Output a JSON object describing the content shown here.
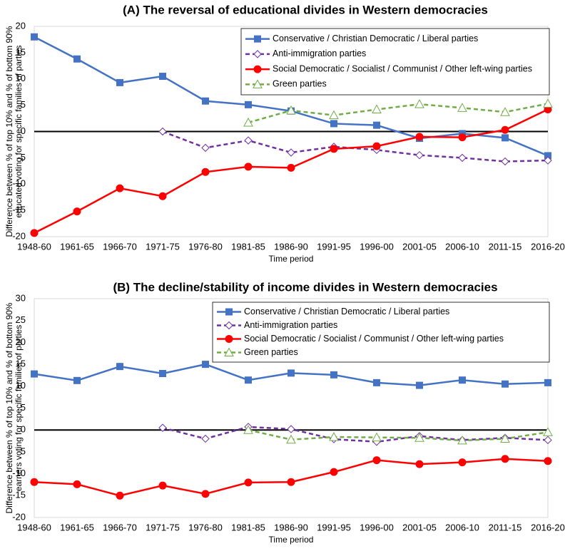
{
  "chart_data": [
    {
      "type": "line",
      "title": "(A)  The reversal of educational divides in Western democracies",
      "x_label": "Time period",
      "y_label": [
        "Difference between % of top 10% and % of bottom 90%",
        "educated voting for specific families of parties"
      ],
      "categories": [
        "1948-60",
        "1961-65",
        "1966-70",
        "1971-75",
        "1976-80",
        "1981-85",
        "1986-90",
        "1991-95",
        "1996-00",
        "2001-05",
        "2006-10",
        "2011-15",
        "2016-20"
      ],
      "ylim": [
        -20,
        20
      ],
      "yticks": [
        -20,
        -15,
        -10,
        -5,
        0,
        5,
        10,
        15,
        20
      ],
      "grid": false,
      "legend": "upper right",
      "series": [
        {
          "name": "Conservative / Christian Democratic / Liberal parties",
          "color": "#4472c4",
          "marker": "square",
          "dashed": false,
          "values": [
            18,
            13.8,
            9.3,
            10.5,
            5.8,
            5.1,
            3.9,
            1.5,
            1.2,
            -1.3,
            -0.4,
            -1.2,
            -4.6
          ]
        },
        {
          "name": "Anti-immigration parties",
          "color": "#7030a0",
          "marker": "diamond",
          "dashed": true,
          "values": [
            null,
            null,
            null,
            0,
            -3.1,
            -1.7,
            -4,
            -2.9,
            -3.5,
            -4.5,
            -5,
            -5.7,
            -5.5
          ]
        },
        {
          "name": "Social Democratic / Socialist / Communist / Other left-wing parties",
          "color": "#ff0000",
          "marker": "circle",
          "dashed": false,
          "values": [
            -19.3,
            -15.2,
            -10.8,
            -12.3,
            -7.7,
            -6.7,
            -6.9,
            -3.3,
            -2.8,
            -1,
            -1.1,
            0.3,
            4.2
          ]
        },
        {
          "name": "Green parties",
          "color": "#70ad47",
          "marker": "triangle",
          "dashed": true,
          "values": [
            null,
            null,
            null,
            null,
            null,
            1.7,
            4,
            3.1,
            4.2,
            5.2,
            4.5,
            3.7,
            5.3
          ]
        }
      ]
    },
    {
      "type": "line",
      "title": "(B)  The decline/stability of income divides in Western democracies",
      "x_label": "Time period",
      "y_label": [
        "Difference between % of top 10% and % of bottom 90%",
        "earners voting for specific families of parties"
      ],
      "categories": [
        "1948-60",
        "1961-65",
        "1966-70",
        "1971-75",
        "1976-80",
        "1981-85",
        "1986-90",
        "1991-95",
        "1996-00",
        "2001-05",
        "2006-10",
        "2011-15",
        "2016-20"
      ],
      "ylim": [
        -20,
        30
      ],
      "yticks": [
        -20,
        -15,
        -10,
        -5,
        0,
        5,
        10,
        15,
        20,
        25,
        30
      ],
      "grid": false,
      "legend": "upper right",
      "series": [
        {
          "name": "Conservative / Christian Democratic / Liberal parties",
          "color": "#4472c4",
          "marker": "square",
          "dashed": false,
          "values": [
            12.8,
            11.3,
            14.5,
            12.9,
            15,
            11.4,
            13,
            12.6,
            10.8,
            10.2,
            11.4,
            10.5,
            10.8
          ]
        },
        {
          "name": "Anti-immigration parties",
          "color": "#7030a0",
          "marker": "diamond",
          "dashed": true,
          "values": [
            null,
            null,
            null,
            0.5,
            -2,
            0.7,
            0.2,
            -2.1,
            -2.7,
            -1.4,
            -2.3,
            -1.8,
            -2.3
          ]
        },
        {
          "name": "Social Democratic / Socialist / Communist / Other left-wing parties",
          "color": "#ff0000",
          "marker": "circle",
          "dashed": false,
          "values": [
            -11.9,
            -12.4,
            -15,
            -12.7,
            -14.6,
            -12,
            -11.9,
            -9.6,
            -6.9,
            -7.8,
            -7.4,
            -6.6,
            -7.1
          ]
        },
        {
          "name": "Green parties",
          "color": "#70ad47",
          "marker": "triangle",
          "dashed": true,
          "values": [
            null,
            null,
            null,
            null,
            null,
            0,
            -2.2,
            -1.6,
            -1.7,
            -1.8,
            -2.4,
            -2,
            -0.5
          ]
        }
      ]
    }
  ]
}
